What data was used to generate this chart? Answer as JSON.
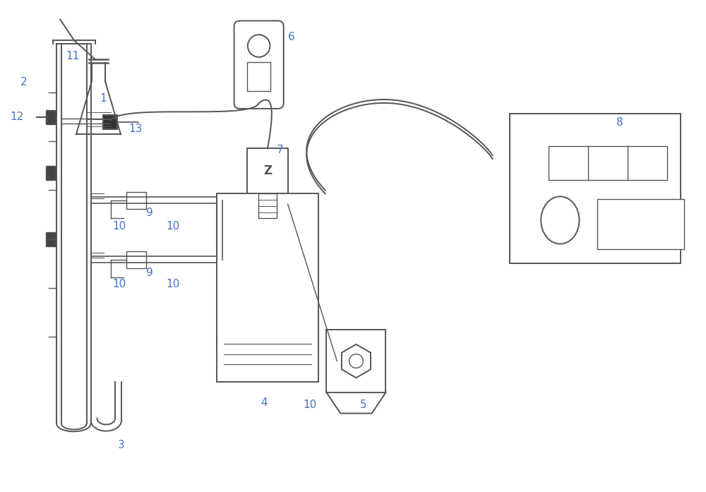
{
  "bg_color": "#ffffff",
  "line_color": "#555555",
  "label_color": "#4472c4",
  "fig_width": 10.0,
  "fig_height": 6.97
}
